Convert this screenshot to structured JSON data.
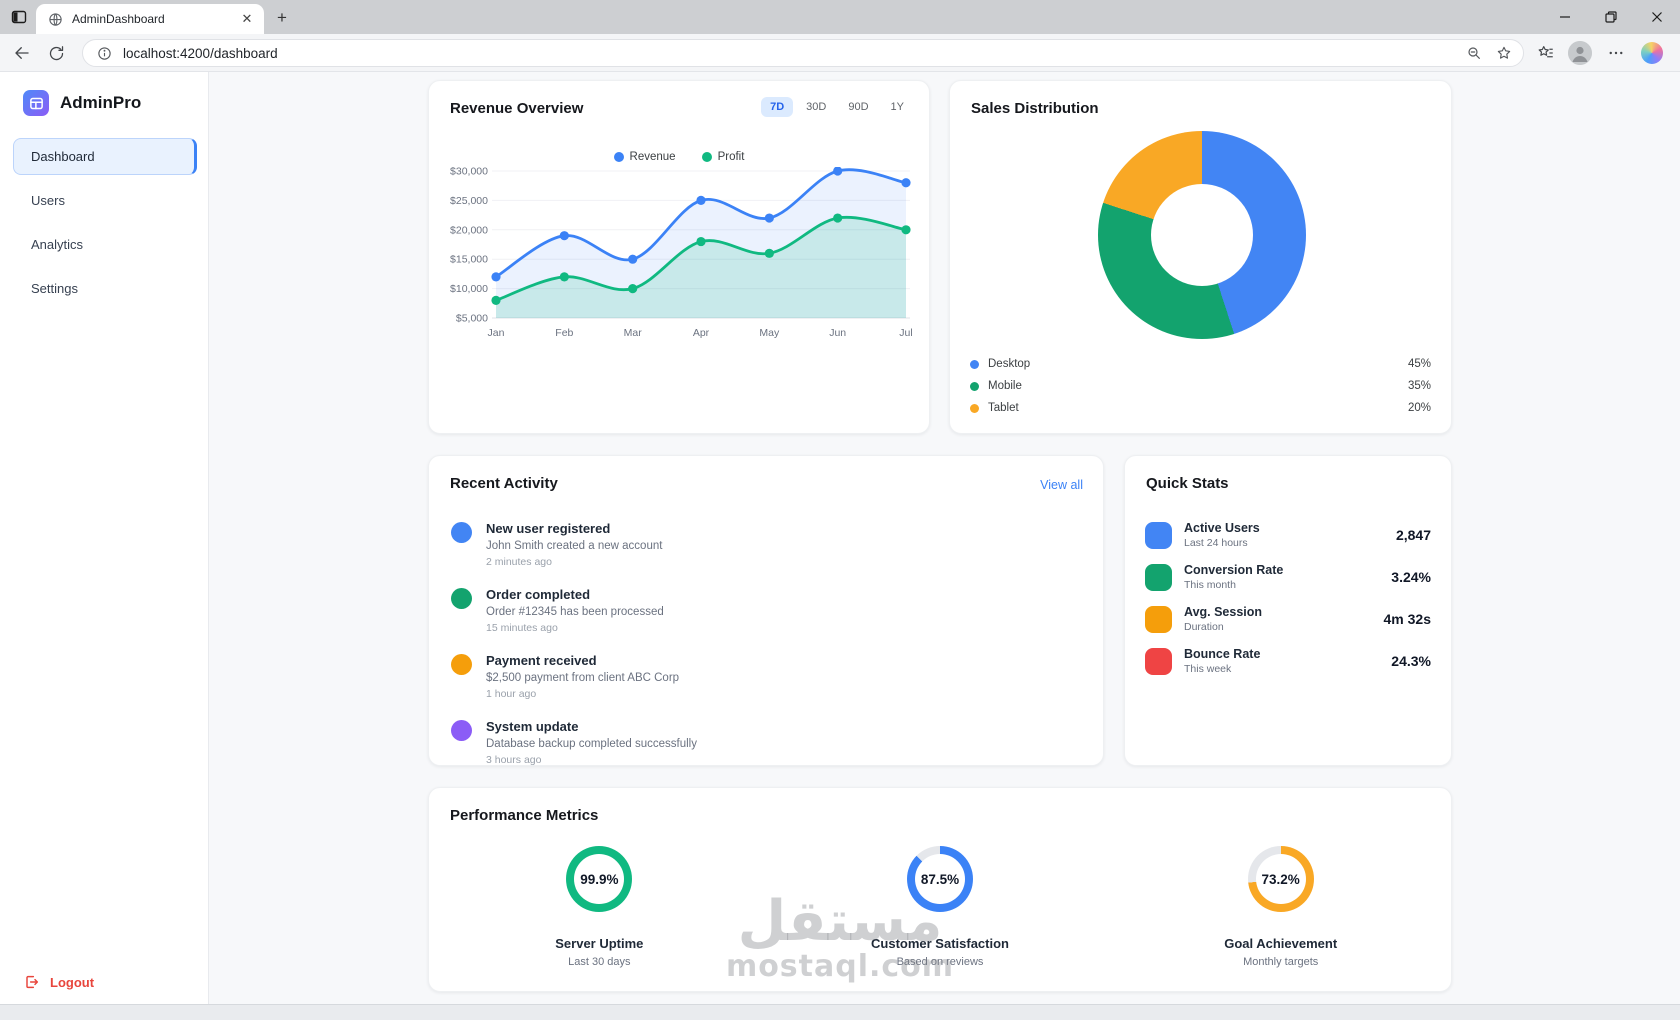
{
  "browser": {
    "tab_title": "AdminDashboard",
    "url": "localhost:4200/dashboard"
  },
  "sidebar": {
    "brand": "AdminPro",
    "nav": [
      {
        "label": "Dashboard",
        "active": true
      },
      {
        "label": "Users",
        "active": false
      },
      {
        "label": "Analytics",
        "active": false
      },
      {
        "label": "Settings",
        "active": false
      }
    ],
    "logout": "Logout",
    "logout_color": "#e8453c"
  },
  "cards": {
    "revenue": {
      "title": "Revenue Overview",
      "ranges": [
        {
          "label": "7D",
          "active": true
        },
        {
          "label": "30D",
          "active": false
        },
        {
          "label": "90D",
          "active": false
        },
        {
          "label": "1Y",
          "active": false
        }
      ]
    },
    "sales": {
      "title": "Sales Distribution",
      "legend": [
        {
          "label": "Desktop",
          "value": "45%",
          "color": "#4285f4"
        },
        {
          "label": "Mobile",
          "value": "35%",
          "color": "#13a36e"
        },
        {
          "label": "Tablet",
          "value": "20%",
          "color": "#f9a825"
        }
      ]
    },
    "activity": {
      "title": "Recent Activity",
      "view_all": "View all",
      "items": [
        {
          "color": "#4285f4",
          "title": "New user registered",
          "subtitle": "John Smith created a new account",
          "time": "2 minutes ago"
        },
        {
          "color": "#13a36e",
          "title": "Order completed",
          "subtitle": "Order #12345 has been processed",
          "time": "15 minutes ago"
        },
        {
          "color": "#f59e0b",
          "title": "Payment received",
          "subtitle": "$2,500 payment from client ABC Corp",
          "time": "1 hour ago"
        },
        {
          "color": "#8b5cf6",
          "title": "System update",
          "subtitle": "Database backup completed successfully",
          "time": "3 hours ago"
        }
      ]
    },
    "quick_stats": {
      "title": "Quick Stats",
      "items": [
        {
          "color": "#4285f4",
          "label": "Active Users",
          "sublabel": "Last 24 hours",
          "value": "2,847"
        },
        {
          "color": "#13a36e",
          "label": "Conversion Rate",
          "sublabel": "This month",
          "value": "3.24%"
        },
        {
          "color": "#f59e0b",
          "label": "Avg. Session",
          "sublabel": "Duration",
          "value": "4m 32s"
        },
        {
          "color": "#ef4444",
          "label": "Bounce Rate",
          "sublabel": "This week",
          "value": "24.3%"
        }
      ]
    },
    "performance": {
      "title": "Performance Metrics"
    }
  },
  "chart_data": [
    {
      "id": "revenue-overview",
      "type": "line",
      "title": "Revenue Overview",
      "x": [
        "Jan",
        "Feb",
        "Mar",
        "Apr",
        "May",
        "Jun",
        "Jul"
      ],
      "series": [
        {
          "name": "Revenue",
          "color": "#3b82f6",
          "fill": "rgba(59,130,246,0.10)",
          "values": [
            12000,
            19000,
            15000,
            25000,
            22000,
            30000,
            28000
          ]
        },
        {
          "name": "Profit",
          "color": "#10b981",
          "fill": "rgba(16,185,129,0.16)",
          "values": [
            8000,
            12000,
            10000,
            18000,
            16000,
            22000,
            20000
          ]
        }
      ],
      "ylim": [
        5000,
        30000
      ],
      "yticks": [
        5000,
        10000,
        15000,
        20000,
        25000,
        30000
      ],
      "ytick_labels": [
        "$5,000",
        "$10,000",
        "$15,000",
        "$20,000",
        "$25,000",
        "$30,000"
      ],
      "grid": true,
      "legend_position": "top"
    },
    {
      "id": "sales-distribution",
      "type": "pie",
      "donut": true,
      "title": "Sales Distribution",
      "labels": [
        "Desktop",
        "Mobile",
        "Tablet"
      ],
      "values": [
        45,
        35,
        20
      ],
      "colors": [
        "#4285f4",
        "#13a36e",
        "#f9a825"
      ]
    },
    {
      "id": "performance-metrics",
      "type": "progress-rings",
      "title": "Performance Metrics",
      "items": [
        {
          "value": 99.9,
          "display": "99.9%",
          "label": "Server Uptime",
          "sublabel": "Last 30 days",
          "color": "#10b981"
        },
        {
          "value": 87.5,
          "display": "87.5%",
          "label": "Customer Satisfaction",
          "sublabel": "Based on reviews",
          "color": "#3b82f6"
        },
        {
          "value": 73.2,
          "display": "73.2%",
          "label": "Goal Achievement",
          "sublabel": "Monthly targets",
          "color": "#f9a825"
        }
      ]
    }
  ],
  "watermark": {
    "arabic": "مستقل",
    "latin": "mostaql.com"
  }
}
